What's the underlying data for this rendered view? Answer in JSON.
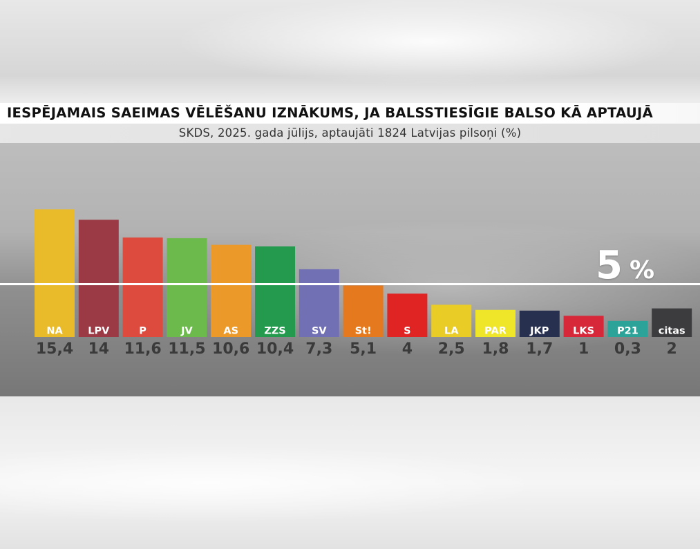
{
  "title": "IESPĒJAMAIS SAEIMAS VĒLĒŠANU IZNĀKUMS, JA BALSSTIESĪGIE BALSO KĀ APTAUJĀ",
  "subtitle": "SKDS, 2025. gada jūlijs, aptaujāti 1824 Latvijas pilsoņi (%)",
  "threshold": {
    "value": 5,
    "label_num": "5",
    "label_unit": "%"
  },
  "chart_data": {
    "type": "bar",
    "title": "IESPĒJAMAIS SAEIMAS VĒLĒŠANU IZNĀKUMS, JA BALSSTIESĪGIE BALSO KĀ APTAUJĀ",
    "subtitle": "SKDS, 2025. gada jūlijs, aptaujāti 1824 Latvijas pilsoņi (%)",
    "categories": [
      "NA",
      "LPV",
      "P",
      "JV",
      "AS",
      "ZZS",
      "SV",
      "St!",
      "S",
      "LA",
      "PAR",
      "JKP",
      "LKS",
      "P21",
      "citas"
    ],
    "values": [
      15.4,
      14,
      11.6,
      11.5,
      10.6,
      10.4,
      7.3,
      5.1,
      4,
      2.5,
      1.8,
      1.7,
      1,
      0.3,
      2
    ],
    "value_labels": [
      "15,4",
      "14",
      "11,6",
      "11,5",
      "10,6",
      "10,4",
      "7,3",
      "5,1",
      "4",
      "2,5",
      "1,8",
      "1,7",
      "1",
      "0,3",
      "2"
    ],
    "colors": [
      "#e9bb2a",
      "#9b3a45",
      "#dc4b3e",
      "#6dba4c",
      "#eb9a2a",
      "#239a4e",
      "#7270b4",
      "#e4791e",
      "#e02424",
      "#e9cc26",
      "#efe62a",
      "#283050",
      "#d7283a",
      "#2ba398",
      "#3c3c3f"
    ],
    "label_text_colors": [
      "#ffffff",
      "#ffffff",
      "#ffffff",
      "#ffffff",
      "#ffffff",
      "#ffffff",
      "#ffffff",
      "#ffffff",
      "#ffffff",
      "#ffffff",
      "#ffffff",
      "#ffffff",
      "#ffffff",
      "#ffffff",
      "#ffffff"
    ],
    "threshold": 5,
    "xlabel": "",
    "ylabel": "",
    "grid": false,
    "legend": "none"
  }
}
